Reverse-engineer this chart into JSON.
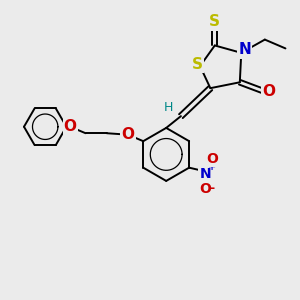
{
  "bg_color": "#ebebeb",
  "bond_color": "#000000",
  "bond_width": 1.4,
  "S_color": "#bbbb00",
  "N_color": "#0000cc",
  "O_color": "#cc0000",
  "H_color": "#008888",
  "fig_w": 3.0,
  "fig_h": 3.0,
  "dpi": 100,
  "xlim": [
    0,
    10
  ],
  "ylim": [
    0,
    10
  ]
}
